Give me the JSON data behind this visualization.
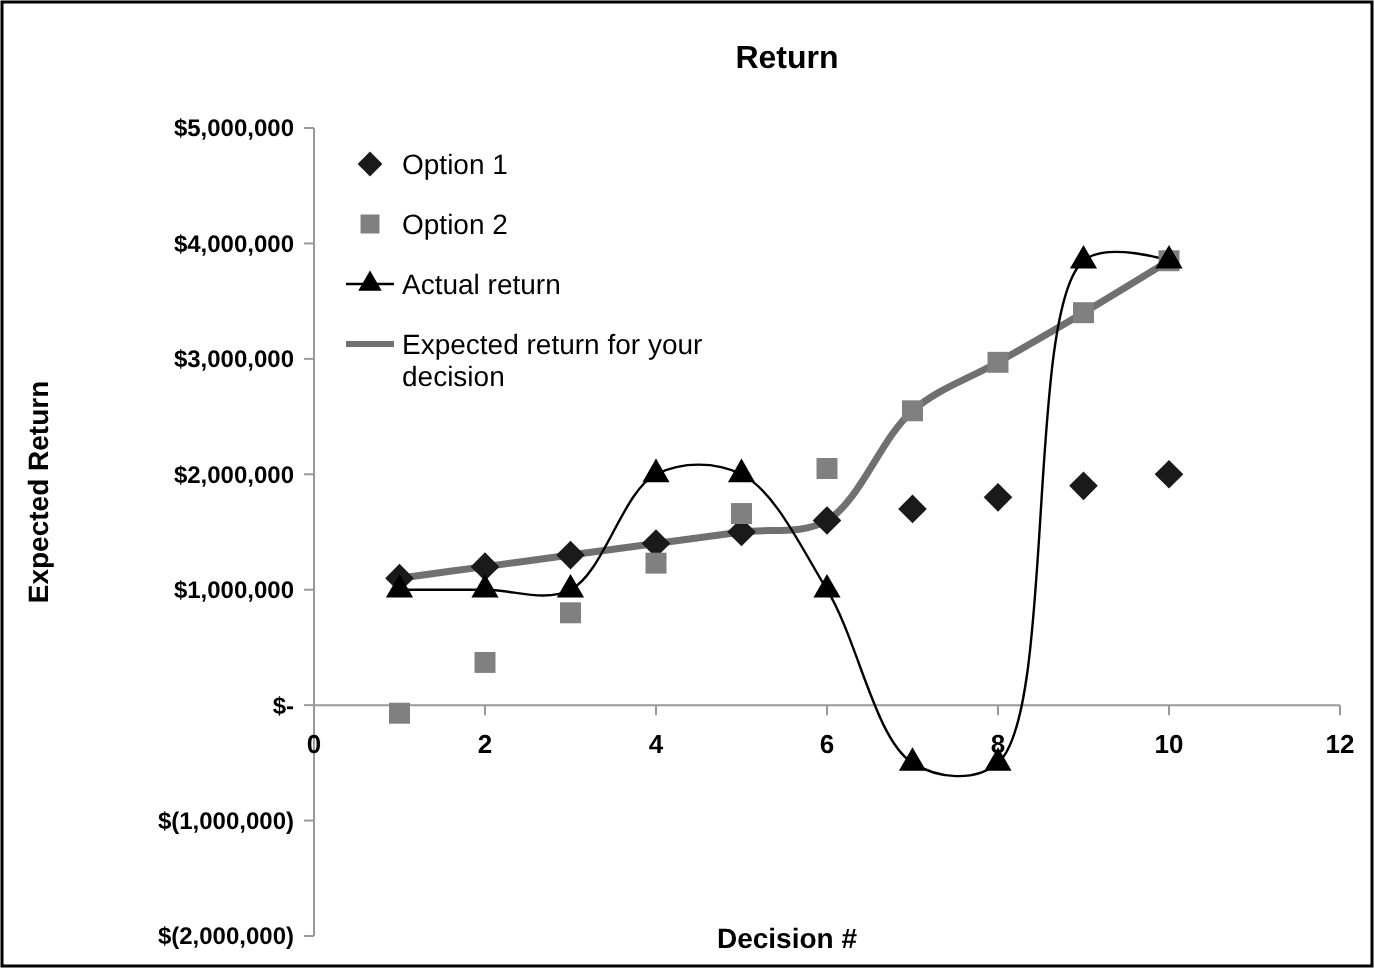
{
  "chart_data": {
    "type": "line",
    "title": "Return",
    "xlabel": "Decision #",
    "ylabel": "Expected Return",
    "xlim": [
      0,
      12
    ],
    "xticks": [
      0,
      2,
      4,
      6,
      8,
      10,
      12
    ],
    "ylim": [
      -2000000,
      5000000
    ],
    "yticks": [
      {
        "value": -2000000,
        "label": "$(2,000,000)"
      },
      {
        "value": -1000000,
        "label": "$(1,000,000)"
      },
      {
        "value": 0,
        "label": "$-"
      },
      {
        "value": 1000000,
        "label": "$1,000,000"
      },
      {
        "value": 2000000,
        "label": "$2,000,000"
      },
      {
        "value": 3000000,
        "label": "$3,000,000"
      },
      {
        "value": 4000000,
        "label": "$4,000,000"
      },
      {
        "value": 5000000,
        "label": "$5,000,000"
      }
    ],
    "x": [
      1,
      2,
      3,
      4,
      5,
      6,
      7,
      8,
      9,
      10
    ],
    "grid": false,
    "legend": "top left",
    "series": [
      {
        "name": "Option 1",
        "type": "scatter",
        "marker": "diamond",
        "color": "#1a1a1a",
        "values": [
          1100000,
          1200000,
          1300000,
          1400000,
          1500000,
          1600000,
          1700000,
          1800000,
          1900000,
          2000000
        ]
      },
      {
        "name": "Option 2",
        "type": "scatter",
        "marker": "square",
        "color": "#808080",
        "values": [
          -70000,
          370000,
          800000,
          1230000,
          1660000,
          2050000,
          2550000,
          2970000,
          3400000,
          3850000
        ]
      },
      {
        "name": "Actual return",
        "marker": "triangle",
        "color": "#000000",
        "line_style": "solid",
        "values": [
          1000000,
          1000000,
          1000000,
          2000000,
          2000000,
          1000000,
          -500000,
          -500000,
          3850000,
          3850000
        ]
      },
      {
        "name": "Expected return for your decision",
        "marker": "none",
        "color": "#707070",
        "line_style": "solid",
        "values": [
          1100000,
          1200000,
          1300000,
          1400000,
          1500000,
          1600000,
          2550000,
          2970000,
          3400000,
          3850000
        ]
      }
    ]
  }
}
